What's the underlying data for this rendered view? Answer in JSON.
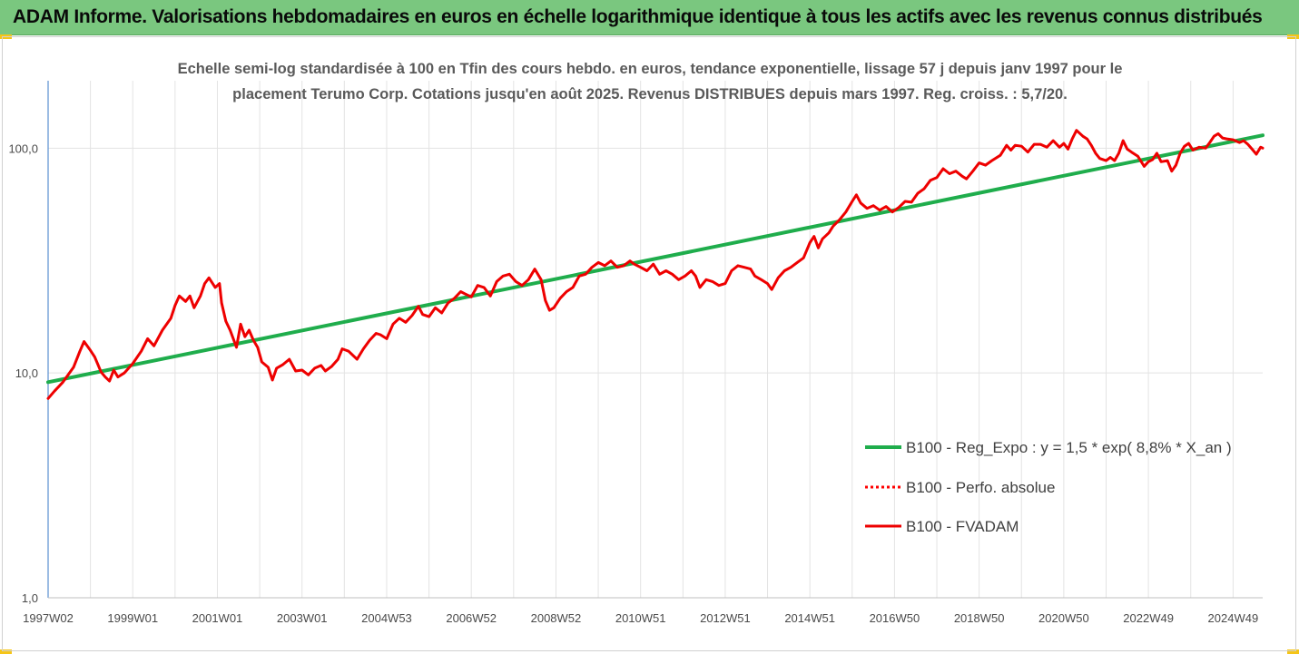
{
  "header": {
    "title": "ADAM Informe. Valorisations hebdomadaires en euros en échelle logarithmique identique à tous les actifs avec les revenus connus distribués"
  },
  "colors": {
    "header_bg": "#7ac77f",
    "trend": "#1fad4c",
    "perf": "#ff0000",
    "fvadam": "#ee0000",
    "grid": "#e3e3e3"
  },
  "chart_data": {
    "type": "line",
    "subtitle_lines": [
      "Echelle semi-log standardisée à 100 en Tfin des cours hebdo. en euros, tendance exponentielle, lissage 57 j depuis janv 1997 pour le",
      "placement Terumo Corp. Cotations jusqu'en août 2025. Revenus DISTRIBUES depuis mars 1997. Reg. croiss. : 5,7/20."
    ],
    "y_scale": "log",
    "ylim": [
      1,
      200
    ],
    "y_ticks": [
      1,
      10,
      100
    ],
    "y_tick_labels": [
      "1,0",
      "10,0",
      "100,0"
    ],
    "xlim": [
      1997.0,
      2025.7
    ],
    "x_ticks": [
      1997.0,
      1999.0,
      2001.0,
      2003.0,
      2005.0,
      2007.0,
      2009.0,
      2011.0,
      2013.0,
      2015.0,
      2017.0,
      2019.0,
      2021.0,
      2023.0,
      2025.0
    ],
    "x_tick_labels": [
      "1997W02",
      "1999W01",
      "2001W01",
      "2003W01",
      "2004W53",
      "2006W52",
      "2008W52",
      "2010W51",
      "2012W51",
      "2014W51",
      "2016W50",
      "2018W50",
      "2020W50",
      "2022W49",
      "2024W49"
    ],
    "grid": "vertical and horizontal",
    "legend_position": "right",
    "series": [
      {
        "name": "B100 - Reg_Expo : y = 1,5 * exp( 8,8% *  X_an )",
        "style": "solid",
        "color": "#1fad4c",
        "points": [
          [
            1997.0,
            9.1
          ],
          [
            2025.7,
            114
          ]
        ]
      },
      {
        "name": "B100 - Perfo. absolue",
        "style": "dotted",
        "color": "#ff0000",
        "points": []
      },
      {
        "name": "B100 - FVADAM",
        "style": "solid",
        "color": "#ee0000",
        "points": [
          [
            1997.0,
            7.7
          ],
          [
            1997.15,
            8.3
          ],
          [
            1997.35,
            9.1
          ],
          [
            1997.6,
            10.6
          ],
          [
            1997.75,
            12.5
          ],
          [
            1997.85,
            13.8
          ],
          [
            1998.0,
            12.6
          ],
          [
            1998.1,
            11.8
          ],
          [
            1998.25,
            10.1
          ],
          [
            1998.35,
            9.6
          ],
          [
            1998.45,
            9.2
          ],
          [
            1998.55,
            10.3
          ],
          [
            1998.65,
            9.6
          ],
          [
            1998.8,
            10.0
          ],
          [
            1999.0,
            11.0
          ],
          [
            1999.2,
            12.5
          ],
          [
            1999.35,
            14.2
          ],
          [
            1999.5,
            13.2
          ],
          [
            1999.7,
            15.5
          ],
          [
            1999.9,
            17.5
          ],
          [
            2000.0,
            20.0
          ],
          [
            2000.1,
            22.0
          ],
          [
            2000.25,
            20.8
          ],
          [
            2000.35,
            22.0
          ],
          [
            2000.45,
            19.5
          ],
          [
            2000.6,
            22.0
          ],
          [
            2000.7,
            25.0
          ],
          [
            2000.8,
            26.5
          ],
          [
            2000.95,
            24.0
          ],
          [
            2001.05,
            25.0
          ],
          [
            2001.1,
            20.5
          ],
          [
            2001.2,
            17.0
          ],
          [
            2001.3,
            15.5
          ],
          [
            2001.45,
            13.0
          ],
          [
            2001.55,
            16.5
          ],
          [
            2001.65,
            14.5
          ],
          [
            2001.75,
            15.5
          ],
          [
            2001.85,
            14.0
          ],
          [
            2001.95,
            13.0
          ],
          [
            2002.05,
            11.2
          ],
          [
            2002.2,
            10.6
          ],
          [
            2002.3,
            9.3
          ],
          [
            2002.4,
            10.5
          ],
          [
            2002.55,
            10.9
          ],
          [
            2002.7,
            11.5
          ],
          [
            2002.85,
            10.2
          ],
          [
            2003.0,
            10.3
          ],
          [
            2003.15,
            9.8
          ],
          [
            2003.3,
            10.5
          ],
          [
            2003.45,
            10.8
          ],
          [
            2003.55,
            10.2
          ],
          [
            2003.7,
            10.7
          ],
          [
            2003.85,
            11.5
          ],
          [
            2003.95,
            12.8
          ],
          [
            2004.1,
            12.5
          ],
          [
            2004.3,
            11.5
          ],
          [
            2004.45,
            12.8
          ],
          [
            2004.6,
            14.0
          ],
          [
            2004.75,
            15.0
          ],
          [
            2004.85,
            14.8
          ],
          [
            2005.0,
            14.2
          ],
          [
            2005.15,
            16.5
          ],
          [
            2005.3,
            17.5
          ],
          [
            2005.45,
            16.8
          ],
          [
            2005.6,
            18.0
          ],
          [
            2005.75,
            19.8
          ],
          [
            2005.85,
            18.2
          ],
          [
            2006.0,
            17.8
          ],
          [
            2006.15,
            19.5
          ],
          [
            2006.3,
            18.5
          ],
          [
            2006.45,
            20.5
          ],
          [
            2006.6,
            21.5
          ],
          [
            2006.75,
            23.0
          ],
          [
            2006.85,
            22.5
          ],
          [
            2007.0,
            21.8
          ],
          [
            2007.15,
            24.5
          ],
          [
            2007.3,
            24.0
          ],
          [
            2007.45,
            22.0
          ],
          [
            2007.6,
            25.5
          ],
          [
            2007.75,
            27.0
          ],
          [
            2007.9,
            27.5
          ],
          [
            2008.05,
            25.5
          ],
          [
            2008.2,
            24.5
          ],
          [
            2008.35,
            26.0
          ],
          [
            2008.5,
            29.0
          ],
          [
            2008.65,
            26.0
          ],
          [
            2008.75,
            21.0
          ],
          [
            2008.85,
            19.0
          ],
          [
            2008.95,
            19.5
          ],
          [
            2009.1,
            21.5
          ],
          [
            2009.25,
            23.0
          ],
          [
            2009.4,
            24.0
          ],
          [
            2009.55,
            27.0
          ],
          [
            2009.7,
            27.5
          ],
          [
            2009.85,
            29.5
          ],
          [
            2010.0,
            31.0
          ],
          [
            2010.15,
            30.0
          ],
          [
            2010.3,
            31.5
          ],
          [
            2010.45,
            29.5
          ],
          [
            2010.6,
            30.0
          ],
          [
            2010.75,
            31.5
          ],
          [
            2010.85,
            30.5
          ],
          [
            2011.0,
            29.5
          ],
          [
            2011.15,
            28.5
          ],
          [
            2011.3,
            30.5
          ],
          [
            2011.45,
            27.5
          ],
          [
            2011.6,
            28.5
          ],
          [
            2011.75,
            27.5
          ],
          [
            2011.9,
            26.0
          ],
          [
            2012.05,
            27.0
          ],
          [
            2012.2,
            28.5
          ],
          [
            2012.3,
            27.0
          ],
          [
            2012.4,
            24.0
          ],
          [
            2012.55,
            26.0
          ],
          [
            2012.7,
            25.5
          ],
          [
            2012.85,
            24.5
          ],
          [
            2013.0,
            25.0
          ],
          [
            2013.15,
            28.5
          ],
          [
            2013.3,
            30.0
          ],
          [
            2013.45,
            29.5
          ],
          [
            2013.6,
            29.0
          ],
          [
            2013.7,
            27.0
          ],
          [
            2013.85,
            26.0
          ],
          [
            2014.0,
            25.0
          ],
          [
            2014.1,
            23.5
          ],
          [
            2014.25,
            26.5
          ],
          [
            2014.4,
            28.5
          ],
          [
            2014.55,
            29.5
          ],
          [
            2014.7,
            31.0
          ],
          [
            2014.85,
            32.5
          ],
          [
            2015.0,
            38.0
          ],
          [
            2015.1,
            40.5
          ],
          [
            2015.2,
            36.0
          ],
          [
            2015.3,
            39.5
          ],
          [
            2015.45,
            42.0
          ],
          [
            2015.55,
            45.0
          ],
          [
            2015.7,
            48.0
          ],
          [
            2015.85,
            52.0
          ],
          [
            2016.0,
            58.0
          ],
          [
            2016.1,
            62.0
          ],
          [
            2016.2,
            57.0
          ],
          [
            2016.35,
            54.0
          ],
          [
            2016.5,
            55.5
          ],
          [
            2016.65,
            53.0
          ],
          [
            2016.8,
            55.0
          ],
          [
            2016.95,
            52.0
          ],
          [
            2017.1,
            54.5
          ],
          [
            2017.25,
            58.0
          ],
          [
            2017.4,
            57.5
          ],
          [
            2017.55,
            63.0
          ],
          [
            2017.7,
            66.0
          ],
          [
            2017.85,
            72.0
          ],
          [
            2018.0,
            74.0
          ],
          [
            2018.15,
            81.0
          ],
          [
            2018.3,
            77.0
          ],
          [
            2018.45,
            79.0
          ],
          [
            2018.6,
            75.0
          ],
          [
            2018.7,
            73.0
          ],
          [
            2018.85,
            79.0
          ],
          [
            2019.0,
            86.0
          ],
          [
            2019.15,
            84.0
          ],
          [
            2019.3,
            88.0
          ],
          [
            2019.5,
            93.0
          ],
          [
            2019.65,
            103.0
          ],
          [
            2019.75,
            98.0
          ],
          [
            2019.85,
            103.0
          ],
          [
            2020.0,
            102.0
          ],
          [
            2020.15,
            96.0
          ],
          [
            2020.3,
            104.0
          ],
          [
            2020.45,
            104.0
          ],
          [
            2020.6,
            101.0
          ],
          [
            2020.75,
            108.0
          ],
          [
            2020.9,
            101.0
          ],
          [
            2021.0,
            105.0
          ],
          [
            2021.1,
            99.0
          ],
          [
            2021.2,
            110.0
          ],
          [
            2021.3,
            120.0
          ],
          [
            2021.45,
            113.0
          ],
          [
            2021.55,
            110.0
          ],
          [
            2021.65,
            103.0
          ],
          [
            2021.75,
            95.0
          ],
          [
            2021.85,
            90.0
          ],
          [
            2022.0,
            88.0
          ],
          [
            2022.1,
            91.0
          ],
          [
            2022.2,
            88.0
          ],
          [
            2022.3,
            95.0
          ],
          [
            2022.4,
            108.0
          ],
          [
            2022.5,
            99.0
          ],
          [
            2022.6,
            96.0
          ],
          [
            2022.75,
            92.0
          ],
          [
            2022.9,
            83.0
          ],
          [
            2023.0,
            87.0
          ],
          [
            2023.1,
            89.0
          ],
          [
            2023.2,
            95.0
          ],
          [
            2023.3,
            87.0
          ],
          [
            2023.45,
            88.0
          ],
          [
            2023.55,
            79.0
          ],
          [
            2023.65,
            84.0
          ],
          [
            2023.75,
            95.0
          ],
          [
            2023.85,
            102.0
          ],
          [
            2023.95,
            105.0
          ],
          [
            2024.05,
            98.0
          ],
          [
            2024.2,
            101.0
          ],
          [
            2024.35,
            100.0
          ],
          [
            2024.45,
            106.0
          ],
          [
            2024.55,
            113.0
          ],
          [
            2024.65,
            116.0
          ],
          [
            2024.75,
            111.0
          ],
          [
            2024.85,
            110.0
          ],
          [
            2025.0,
            109.0
          ],
          [
            2025.15,
            106.0
          ],
          [
            2025.25,
            108.0
          ],
          [
            2025.35,
            104.0
          ],
          [
            2025.45,
            99.0
          ],
          [
            2025.55,
            94.0
          ],
          [
            2025.65,
            101.0
          ],
          [
            2025.7,
            100.0
          ]
        ]
      }
    ]
  }
}
